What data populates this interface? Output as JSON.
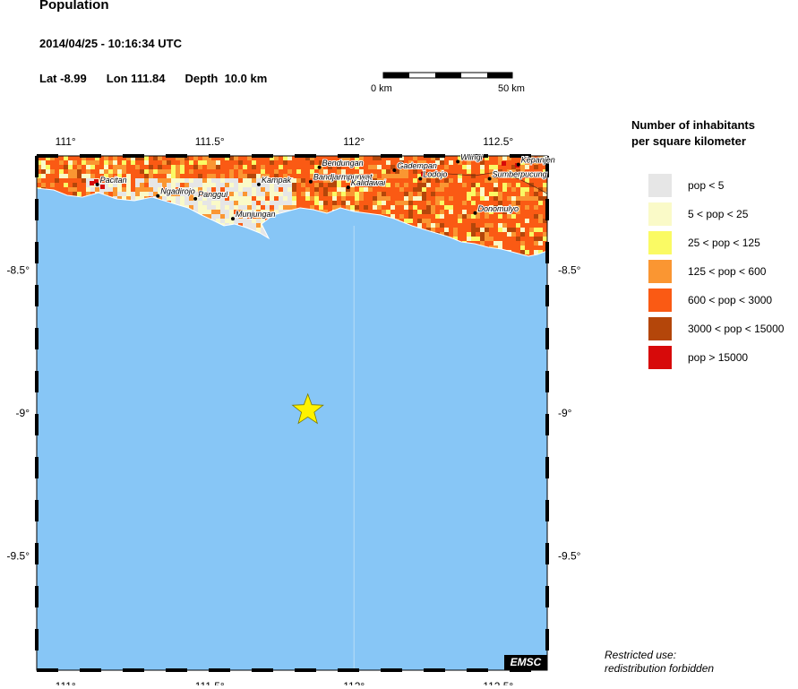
{
  "header": {
    "title": "Population",
    "datetime": "2014/04/25 - 10:16:34 UTC",
    "lat": "Lat -8.99",
    "lon": "Lon 111.84",
    "depth": "Depth  10.0 km"
  },
  "scalebar": {
    "start_label": "0 km",
    "end_label": "50 km"
  },
  "map": {
    "lon_range": [
      110.9,
      112.67
    ],
    "lat_range": [
      -9.9,
      -8.1
    ],
    "x_ticks": [
      {
        "value": 111,
        "label": "111°"
      },
      {
        "value": 111.5,
        "label": "111.5°"
      },
      {
        "value": 112,
        "label": "112°"
      },
      {
        "value": 112.5,
        "label": "112.5°"
      }
    ],
    "y_ticks": [
      {
        "value": -8.5,
        "label": "-8.5°"
      },
      {
        "value": -9,
        "label": "-9°"
      },
      {
        "value": -9.5,
        "label": "-9.5°"
      }
    ],
    "epicenter": {
      "lon": 111.84,
      "lat": -8.99
    },
    "colors": {
      "sea": "#87c6f6",
      "star": "#fff200",
      "land_base": "#f26a1b"
    },
    "places": [
      {
        "name": "Pacitan",
        "lon": 111.11,
        "lat": -8.2
      },
      {
        "name": "Ngadirojo",
        "lon": 111.32,
        "lat": -8.24
      },
      {
        "name": "Panggul",
        "lon": 111.45,
        "lat": -8.25
      },
      {
        "name": "Kampak",
        "lon": 111.67,
        "lat": -8.2
      },
      {
        "name": "Bandjarmpurwat",
        "lon": 111.85,
        "lat": -8.19
      },
      {
        "name": "Bendungan",
        "lon": 111.88,
        "lat": -8.14
      },
      {
        "name": "Kalidawai",
        "lon": 111.98,
        "lat": -8.21
      },
      {
        "name": "Munjungan",
        "lon": 111.58,
        "lat": -8.32
      },
      {
        "name": "Gadempan",
        "lon": 112.14,
        "lat": -8.15
      },
      {
        "name": "Lodojo",
        "lon": 112.23,
        "lat": -8.18
      },
      {
        "name": "Wlingi",
        "lon": 112.36,
        "lat": -8.12
      },
      {
        "name": "Sumberpucung",
        "lon": 112.47,
        "lat": -8.18
      },
      {
        "name": "Kepanjen",
        "lon": 112.57,
        "lat": -8.13
      },
      {
        "name": "Donomulyo",
        "lon": 112.42,
        "lat": -8.3
      }
    ]
  },
  "legend": {
    "title_line1": "Number of inhabitants",
    "title_line2": "per square kilometer",
    "items": [
      {
        "label": "pop < 5",
        "color": "#e6e6e6"
      },
      {
        "label": "5 < pop < 25",
        "color": "#fafac8"
      },
      {
        "label": "25 < pop < 125",
        "color": "#fafa64"
      },
      {
        "label": "125 < pop < 600",
        "color": "#fa9632"
      },
      {
        "label": "600 < pop < 3000",
        "color": "#fa5a14"
      },
      {
        "label": "3000 < pop < 15000",
        "color": "#b4460a"
      },
      {
        "label": "pop > 15000",
        "color": "#d70a0a"
      }
    ]
  },
  "footer": {
    "badge": "EMSC",
    "line1": "Restricted use:",
    "line2": "redistribution forbidden"
  }
}
